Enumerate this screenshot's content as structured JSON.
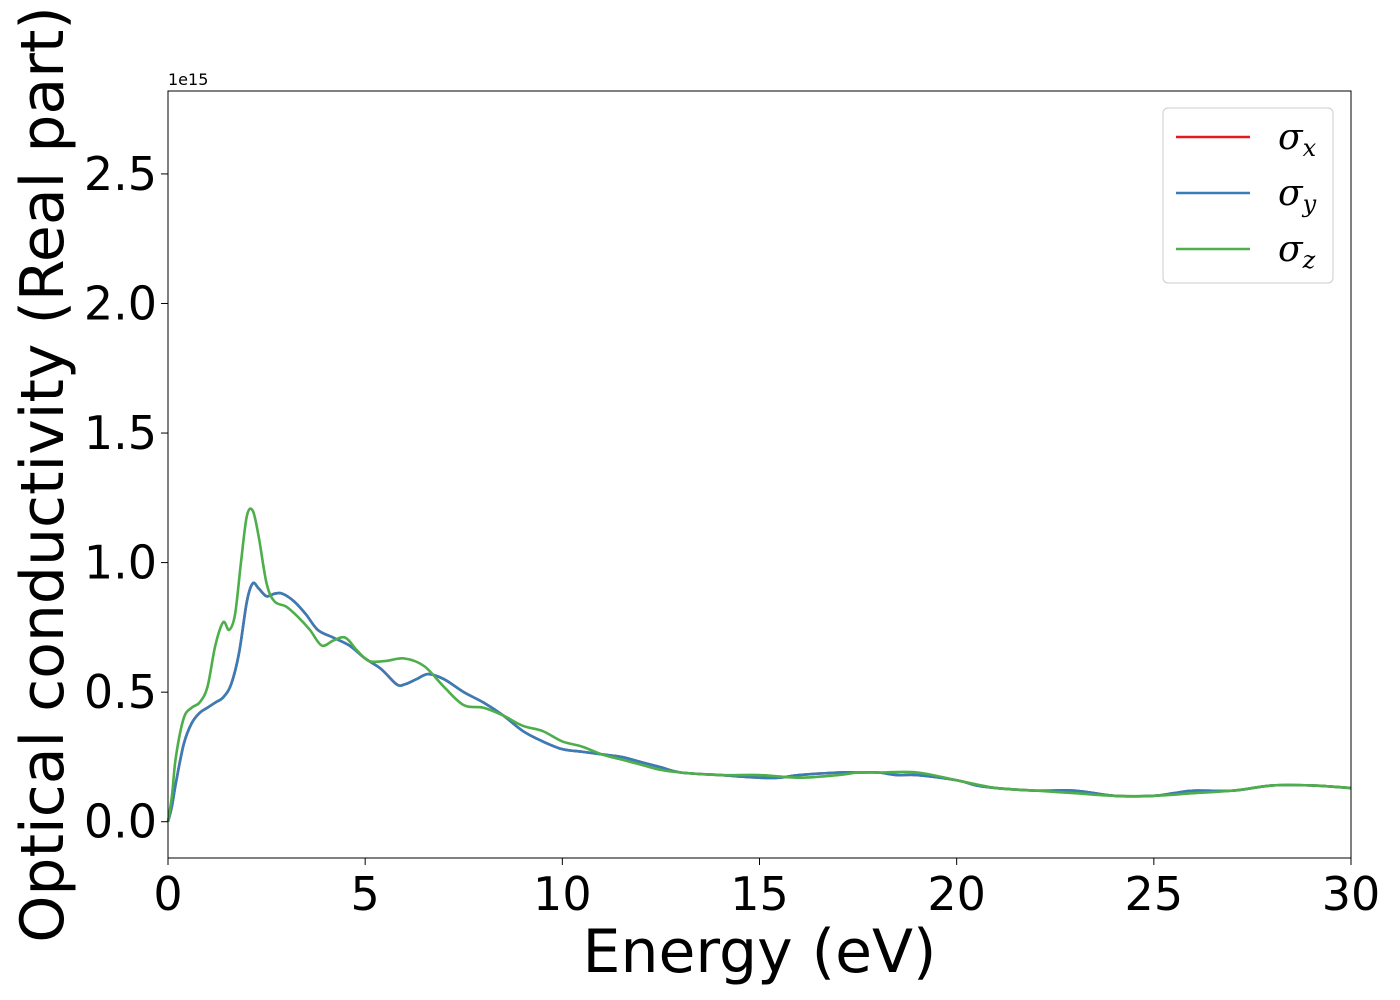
{
  "chart_data": {
    "type": "line",
    "title": "",
    "xlabel": "Energy (eV)",
    "ylabel": "Optical conductivity (Real part)",
    "y_offset_label": "1e15",
    "xlim": [
      0,
      30
    ],
    "ylim": [
      -0.14,
      2.82
    ],
    "xticks": [
      "0",
      "5",
      "10",
      "15",
      "20",
      "25",
      "30"
    ],
    "yticks": [
      "0.0",
      "0.5",
      "1.0",
      "1.5",
      "2.0",
      "2.5"
    ],
    "grid": false,
    "legend_position": "top-right",
    "series": [
      {
        "name": "σx",
        "symbol": "σ",
        "subscript": "x",
        "color": "#e41a1c",
        "x": [
          0,
          0.1,
          0.2,
          0.4,
          0.6,
          0.8,
          1.0,
          1.2,
          1.4,
          1.6,
          1.8,
          2.0,
          2.15,
          2.3,
          2.5,
          2.7,
          2.9,
          3.2,
          3.5,
          3.8,
          4.2,
          4.6,
          5.0,
          5.4,
          5.8,
          6.0,
          6.3,
          6.6,
          7.0,
          7.5,
          8.0,
          8.5,
          9.0,
          9.5,
          10.0,
          10.5,
          11.0,
          11.5,
          12.0,
          12.5,
          13.0,
          14.0,
          15.0,
          15.5,
          16.0,
          17.0,
          17.5,
          18.0,
          18.5,
          19.0,
          20.0,
          20.5,
          21.0,
          22.0,
          23.0,
          24.0,
          25.0,
          25.5,
          26.0,
          27.0,
          28.0,
          29.0,
          30.0
        ],
        "values": [
          0.0,
          0.06,
          0.15,
          0.3,
          0.38,
          0.42,
          0.44,
          0.46,
          0.48,
          0.53,
          0.65,
          0.85,
          0.92,
          0.9,
          0.87,
          0.88,
          0.88,
          0.85,
          0.8,
          0.74,
          0.71,
          0.68,
          0.63,
          0.59,
          0.53,
          0.53,
          0.55,
          0.57,
          0.55,
          0.5,
          0.46,
          0.41,
          0.35,
          0.31,
          0.28,
          0.27,
          0.26,
          0.25,
          0.23,
          0.21,
          0.19,
          0.18,
          0.17,
          0.17,
          0.18,
          0.19,
          0.19,
          0.19,
          0.18,
          0.18,
          0.16,
          0.14,
          0.13,
          0.12,
          0.12,
          0.1,
          0.1,
          0.11,
          0.12,
          0.12,
          0.14,
          0.14,
          0.13
        ]
      },
      {
        "name": "σy",
        "symbol": "σ",
        "subscript": "y",
        "color": "#377eb8",
        "x": [
          0,
          0.1,
          0.2,
          0.4,
          0.6,
          0.8,
          1.0,
          1.2,
          1.4,
          1.6,
          1.8,
          2.0,
          2.15,
          2.3,
          2.5,
          2.7,
          2.9,
          3.2,
          3.5,
          3.8,
          4.2,
          4.6,
          5.0,
          5.4,
          5.8,
          6.0,
          6.3,
          6.6,
          7.0,
          7.5,
          8.0,
          8.5,
          9.0,
          9.5,
          10.0,
          10.5,
          11.0,
          11.5,
          12.0,
          12.5,
          13.0,
          14.0,
          15.0,
          15.5,
          16.0,
          17.0,
          17.5,
          18.0,
          18.5,
          19.0,
          20.0,
          20.5,
          21.0,
          22.0,
          23.0,
          24.0,
          25.0,
          25.5,
          26.0,
          27.0,
          28.0,
          29.0,
          30.0
        ],
        "values": [
          0.0,
          0.06,
          0.15,
          0.3,
          0.38,
          0.42,
          0.44,
          0.46,
          0.48,
          0.53,
          0.65,
          0.85,
          0.92,
          0.9,
          0.87,
          0.88,
          0.88,
          0.85,
          0.8,
          0.74,
          0.71,
          0.68,
          0.63,
          0.59,
          0.53,
          0.53,
          0.55,
          0.57,
          0.55,
          0.5,
          0.46,
          0.41,
          0.35,
          0.31,
          0.28,
          0.27,
          0.26,
          0.25,
          0.23,
          0.21,
          0.19,
          0.18,
          0.17,
          0.17,
          0.18,
          0.19,
          0.19,
          0.19,
          0.18,
          0.18,
          0.16,
          0.14,
          0.13,
          0.12,
          0.12,
          0.1,
          0.1,
          0.11,
          0.12,
          0.12,
          0.14,
          0.14,
          0.13
        ]
      },
      {
        "name": "σz",
        "symbol": "σ",
        "subscript": "z",
        "color": "#4daf4a",
        "x": [
          0,
          0.1,
          0.2,
          0.4,
          0.6,
          0.8,
          1.0,
          1.2,
          1.4,
          1.55,
          1.7,
          1.85,
          2.0,
          2.15,
          2.3,
          2.5,
          2.7,
          3.0,
          3.3,
          3.6,
          3.9,
          4.2,
          4.5,
          4.8,
          5.1,
          5.5,
          6.0,
          6.5,
          7.0,
          7.5,
          8.0,
          8.5,
          9.0,
          9.5,
          10.0,
          10.5,
          11.0,
          11.5,
          12.0,
          12.5,
          13.0,
          14.0,
          15.0,
          16.0,
          17.0,
          17.5,
          18.0,
          19.0,
          20.0,
          21.0,
          22.0,
          23.0,
          24.0,
          25.0,
          26.0,
          27.0,
          28.0,
          29.0,
          30.0
        ],
        "values": [
          0.0,
          0.1,
          0.25,
          0.4,
          0.44,
          0.46,
          0.52,
          0.68,
          0.77,
          0.74,
          0.8,
          1.0,
          1.18,
          1.2,
          1.1,
          0.92,
          0.85,
          0.83,
          0.79,
          0.74,
          0.68,
          0.7,
          0.71,
          0.66,
          0.62,
          0.62,
          0.63,
          0.6,
          0.52,
          0.45,
          0.44,
          0.41,
          0.37,
          0.35,
          0.31,
          0.29,
          0.26,
          0.24,
          0.22,
          0.2,
          0.19,
          0.18,
          0.18,
          0.17,
          0.18,
          0.19,
          0.19,
          0.19,
          0.16,
          0.13,
          0.12,
          0.11,
          0.1,
          0.1,
          0.11,
          0.12,
          0.14,
          0.14,
          0.13
        ]
      }
    ]
  }
}
